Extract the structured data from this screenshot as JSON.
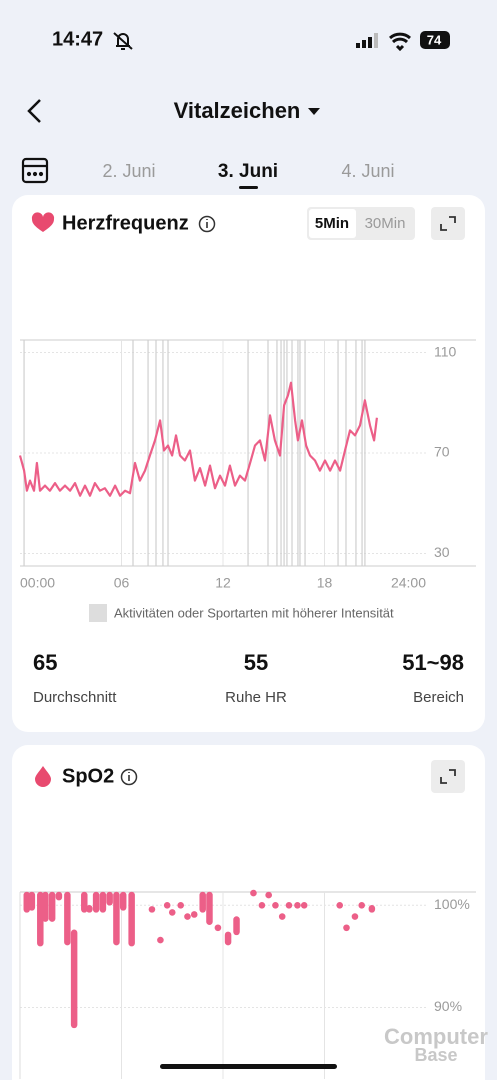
{
  "status_bar": {
    "time": "14:47",
    "battery": "74"
  },
  "header": {
    "title": "Vitalzeichen"
  },
  "date_tabs": [
    "2. Juni",
    "3. Juni",
    "4. Juni"
  ],
  "chart_data": [
    {
      "type": "line",
      "title": "Herzfrequenz",
      "toggle": [
        "5Min",
        "30Min"
      ],
      "color": "#ec5f88",
      "x": [
        0,
        0.24,
        0.41,
        0.59,
        0.83,
        1.0,
        1.18,
        1.48,
        1.77,
        2.07,
        2.36,
        2.66,
        2.96,
        3.25,
        3.55,
        3.84,
        4.14,
        4.43,
        4.73,
        5.02,
        5.32,
        5.62,
        5.91,
        6.21,
        6.5,
        6.8,
        7.09,
        7.39,
        7.68,
        7.98,
        8.28,
        8.51,
        8.75,
        8.99,
        9.22,
        9.46,
        9.75,
        10.05,
        10.34,
        10.64,
        10.94,
        11.23,
        11.53,
        11.82,
        12.12,
        12.41,
        12.71,
        13.0,
        13.3,
        13.6,
        13.89,
        14.19,
        14.48,
        14.78,
        15.07,
        15.37,
        15.61,
        15.84,
        16.02,
        16.26,
        16.43,
        16.67,
        16.91,
        17.14,
        17.44,
        17.73,
        18.03,
        18.33,
        18.62,
        18.92,
        19.21,
        19.51,
        19.8,
        20.1,
        20.39,
        20.69,
        20.93,
        21.1
      ],
      "values": [
        69,
        63,
        55,
        59,
        55,
        66,
        55,
        57,
        55,
        58,
        55,
        57,
        55,
        58,
        53,
        57,
        53,
        58,
        55,
        56,
        53,
        57,
        53,
        55,
        54,
        66,
        59,
        63,
        69,
        75,
        83,
        71,
        73,
        69,
        77,
        69,
        67,
        71,
        59,
        64,
        57,
        65,
        56,
        61,
        57,
        65,
        57,
        61,
        59,
        66,
        73,
        75,
        67,
        85,
        75,
        69,
        89,
        93,
        98,
        83,
        75,
        83,
        73,
        69,
        67,
        63,
        67,
        63,
        67,
        63,
        71,
        79,
        77,
        81,
        91,
        81,
        75,
        84
      ],
      "xlim": [
        0,
        24
      ],
      "xticks": [
        {
          "value": 0,
          "label": "00:00"
        },
        {
          "value": 6,
          "label": "06"
        },
        {
          "value": 12,
          "label": "12"
        },
        {
          "value": 18,
          "label": "18"
        },
        {
          "value": 24,
          "label": "24:00"
        }
      ],
      "ylim": [
        25,
        115
      ],
      "yticks": [
        110,
        70,
        30
      ],
      "activity_x": [
        0.24,
        6.68,
        7.57,
        8.04,
        8.45,
        8.75,
        13.48,
        14.66,
        15.19,
        15.43,
        15.61,
        15.78,
        16.08,
        16.43,
        16.55,
        16.85,
        18.8,
        19.27,
        19.86,
        20.22,
        20.39
      ],
      "legend": "Aktivitäten oder Sportarten mit höherer Intensität",
      "stats": [
        {
          "value": 65,
          "label": "Durchschnitt"
        },
        {
          "value": 55,
          "label": "Ruhe HR"
        },
        {
          "value": "51~98",
          "label": "Bereich"
        }
      ]
    },
    {
      "type": "bar",
      "title": "SpO2",
      "color": "#ec5f88",
      "x": [
        0.4,
        0.7,
        1.2,
        1.5,
        1.9,
        2.3,
        2.8,
        3.2,
        3.8,
        4.1,
        4.5,
        4.9,
        5.3,
        5.7,
        6.1,
        6.6,
        7.8,
        8.3,
        8.7,
        9.0,
        9.5,
        9.9,
        10.3,
        10.8,
        11.2,
        11.7,
        12.3,
        12.8,
        13.8,
        14.3,
        14.7,
        15.1,
        15.5,
        15.9,
        16.4,
        16.8,
        18.9,
        19.3,
        19.8,
        20.2,
        20.8
      ],
      "high": [
        101.3,
        101.3,
        101.3,
        101.3,
        101.3,
        101.3,
        101.3,
        97.6,
        101.3,
        100,
        101.3,
        101.3,
        101.3,
        101.3,
        101.3,
        101.3,
        99.6,
        96.6,
        100,
        99.3,
        100,
        98.9,
        99.1,
        101.3,
        101.3,
        97.8,
        97.4,
        98.9,
        101.2,
        100,
        101,
        100,
        98.9,
        100,
        100,
        100,
        100,
        97.8,
        98.9,
        100,
        100
      ],
      "low": [
        99.3,
        99.5,
        96,
        98.4,
        98.4,
        100.5,
        96.1,
        88,
        99.3,
        99.3,
        99.3,
        99.3,
        100,
        96.1,
        99.5,
        96,
        99.6,
        96.6,
        100,
        99.3,
        100,
        98.9,
        99.1,
        99.3,
        98.1,
        97.8,
        96.1,
        97.1,
        101.2,
        100,
        101,
        100,
        98.9,
        100,
        100,
        100,
        100,
        97.8,
        98.9,
        100,
        99.3
      ],
      "xlim": [
        0,
        24
      ],
      "xticks": [
        6,
        12,
        18
      ],
      "ylim": [
        83,
        101.3
      ],
      "yticks": [
        {
          "value": 100,
          "label": "100%"
        },
        {
          "value": 90,
          "label": "90%"
        }
      ]
    }
  ],
  "watermark": [
    "Computer",
    "Base"
  ]
}
